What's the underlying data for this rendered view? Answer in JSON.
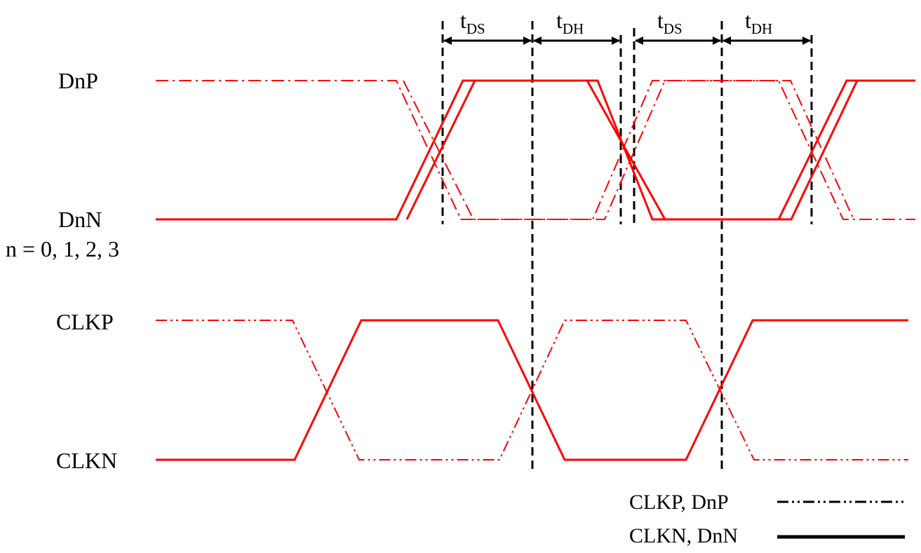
{
  "colors": {
    "signal": "#ff0000",
    "marker": "#000000"
  },
  "labels": {
    "dnp": "DnP",
    "dnn": "DnN",
    "n_values": "n = 0, 1, 2, 3",
    "clkp": "CLKP",
    "clkn": "CLKN"
  },
  "timing": [
    {
      "main": "t",
      "sub": "DS"
    },
    {
      "main": "t",
      "sub": "DH"
    },
    {
      "main": "t",
      "sub": "DS"
    },
    {
      "main": "t",
      "sub": "DH"
    }
  ],
  "legend": [
    {
      "label": "CLKP, DnP",
      "style": "dash-dot-dot"
    },
    {
      "label": "CLKN, DnN",
      "style": "solid"
    }
  ]
}
